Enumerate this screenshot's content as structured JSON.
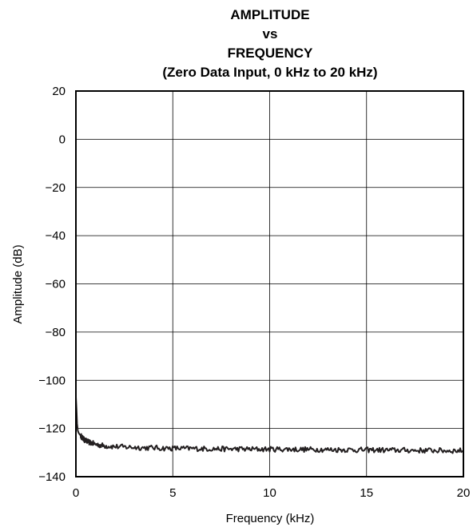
{
  "chart_data": {
    "type": "line",
    "title": [
      "AMPLITUDE",
      "vs",
      "FREQUENCY",
      "(Zero Data Input, 0 kHz to 20 kHz)"
    ],
    "xlabel": "Frequency (kHz)",
    "ylabel": "Amplitude (dB)",
    "xlim": [
      0,
      20
    ],
    "ylim": [
      -140,
      20
    ],
    "xticks": [
      0,
      5,
      10,
      15,
      20
    ],
    "yticks": [
      20,
      0,
      -20,
      -40,
      -60,
      -80,
      -100,
      -120,
      -140
    ],
    "xtick_labels": [
      "0",
      "5",
      "10",
      "15",
      "20"
    ],
    "ytick_labels": [
      "20",
      "0",
      "−20",
      "−40",
      "−60",
      "−80",
      "−100",
      "−120",
      "−140"
    ],
    "grid": true,
    "line_color": "#231f20",
    "series": [
      {
        "x": [
          0,
          0.03,
          0.06,
          0.1,
          0.15,
          0.2,
          0.3,
          0.4,
          0.5,
          0.6,
          0.8,
          1.0,
          1.3,
          1.6,
          2.0,
          2.5,
          3.0,
          3.5,
          4.0,
          4.5,
          5.0,
          5.5,
          6.0,
          6.5,
          7.0,
          7.5,
          8.0,
          8.5,
          9.0,
          9.5,
          10.0,
          10.5,
          11.0,
          11.5,
          12.0,
          12.5,
          13.0,
          13.5,
          14.0,
          14.5,
          15.0,
          15.5,
          16.0,
          16.5,
          17.0,
          17.5,
          18.0,
          18.5,
          19.0,
          19.5,
          20.0
        ],
        "y": [
          -107,
          -112,
          -118,
          -121,
          -122,
          -122.5,
          -123.5,
          -124.5,
          -125,
          -125.5,
          -126,
          -126.5,
          -127,
          -127.3,
          -127.5,
          -127.7,
          -127.8,
          -128,
          -128,
          -128.2,
          -128.2,
          -128.3,
          -128.3,
          -128.4,
          -128.4,
          -128.5,
          -128.5,
          -128.5,
          -128.6,
          -128.6,
          -128.6,
          -128.6,
          -128.6,
          -128.7,
          -128.7,
          -128.7,
          -128.8,
          -128.8,
          -128.8,
          -128.9,
          -128.9,
          -128.9,
          -129,
          -129,
          -129,
          -129.1,
          -129.1,
          -129.1,
          -129.2,
          -129.2,
          -129.2
        ]
      }
    ]
  }
}
